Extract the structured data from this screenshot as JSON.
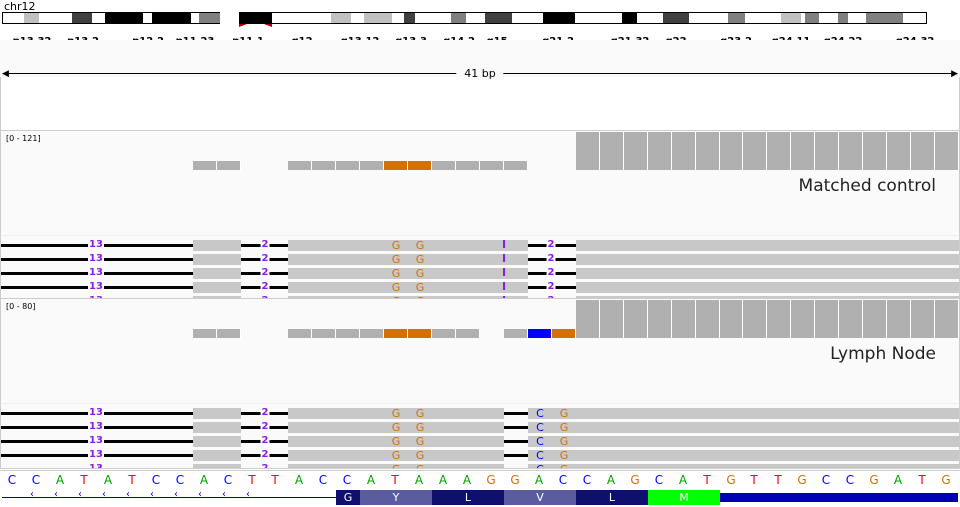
{
  "chromosome": "chr12",
  "ideogram_bands": [
    {
      "stain": "gneg"
    },
    {
      "stain": "gpos25",
      "name": "p13.32"
    },
    {
      "stain": "gneg"
    },
    {
      "stain": "gpos75",
      "name": "p13.2"
    },
    {
      "stain": "gneg"
    },
    {
      "stain": "gpos100"
    },
    {
      "stain": "gneg"
    },
    {
      "stain": "gpos100",
      "name": "p12.2"
    },
    {
      "stain": "gneg",
      "name": "p11.23"
    },
    {
      "stain": "gpos50"
    },
    {
      "stain": "gneg",
      "name": "p11.1"
    },
    {
      "stain": "gpos100",
      "name": "q12"
    },
    {
      "stain": "gneg"
    },
    {
      "stain": "gpos25",
      "name": "q13.12"
    },
    {
      "stain": "gneg"
    },
    {
      "stain": "gpos25",
      "name": "q13.3"
    },
    {
      "stain": "gneg"
    },
    {
      "stain": "gpos75"
    },
    {
      "stain": "gneg",
      "name": "q14.2"
    },
    {
      "stain": "gpos50"
    },
    {
      "stain": "gneg",
      "name": "q15"
    },
    {
      "stain": "gpos75"
    },
    {
      "stain": "gneg",
      "name": "q21.2"
    },
    {
      "stain": "gpos100"
    },
    {
      "stain": "gneg",
      "name": "q21.32"
    },
    {
      "stain": "gpos100"
    },
    {
      "stain": "gneg",
      "name": "q22"
    },
    {
      "stain": "gpos75"
    },
    {
      "stain": "gneg",
      "name": "q23.2"
    },
    {
      "stain": "gpos50"
    },
    {
      "stain": "gneg",
      "name": "q24.11"
    },
    {
      "stain": "gpos25"
    },
    {
      "stain": "gneg"
    },
    {
      "stain": "gpos50",
      "name": "q24.22"
    },
    {
      "stain": "gneg"
    },
    {
      "stain": "gpos50"
    },
    {
      "stain": "gneg"
    },
    {
      "stain": "gpos50",
      "name": "q24.32"
    },
    {
      "stain": "gneg"
    }
  ],
  "ruler": {
    "label": "41 bp"
  },
  "tracks": [
    {
      "sample": "Matched control",
      "range": "[0 - 121]",
      "coverage_low": [
        8,
        9,
        12,
        13,
        14,
        15,
        18,
        19,
        20,
        21
      ],
      "coverage_mismatch": [
        {
          "pos": 16,
          "color": "#d17105"
        },
        {
          "pos": 17,
          "color": "#d17105"
        }
      ],
      "coverage_high_from": 24,
      "read_label_left": "13",
      "read_label_mid": "2",
      "read_label_right": "2",
      "insertion_symbol": "I",
      "mismatches": [
        {
          "pos": 16,
          "base": "G"
        },
        {
          "pos": 17,
          "base": "G"
        }
      ]
    },
    {
      "sample": "Lymph Node",
      "range": "[0 - 80]",
      "coverage_low": [
        8,
        9,
        12,
        13,
        14,
        15,
        18,
        19,
        21
      ],
      "coverage_mismatch": [
        {
          "pos": 16,
          "color": "#d17105"
        },
        {
          "pos": 17,
          "color": "#d17105"
        },
        {
          "pos": 22,
          "color": "#0000ff"
        },
        {
          "pos": 23,
          "color": "#d17105"
        }
      ],
      "coverage_high_from": 24,
      "read_label_left": "13",
      "read_label_mid": "2",
      "mismatches": [
        {
          "pos": 16,
          "base": "G"
        },
        {
          "pos": 17,
          "base": "G"
        },
        {
          "pos": 22,
          "base": "C"
        },
        {
          "pos": 23,
          "base": "G"
        }
      ]
    }
  ],
  "sequence": "CCATATCCACTTACCATAAAGGACCAGCATGTTGCCGATG",
  "base_colors": {
    "A": "#00a000",
    "C": "#0000ff",
    "G": "#d17105",
    "T": "#ff0000"
  },
  "gene": {
    "strand_arrow": "‹",
    "exons": [
      {
        "aa": "G",
        "color": "#0f0f6e"
      },
      {
        "aa": "Y",
        "color": "#5b5ba0"
      },
      {
        "aa": "L",
        "color": "#0f0f6e"
      },
      {
        "aa": "V",
        "color": "#5b5ba0"
      },
      {
        "aa": "L",
        "color": "#0f0f6e"
      },
      {
        "aa": "M",
        "color": "#00ff00"
      }
    ],
    "utr_color": "#0000b0"
  }
}
